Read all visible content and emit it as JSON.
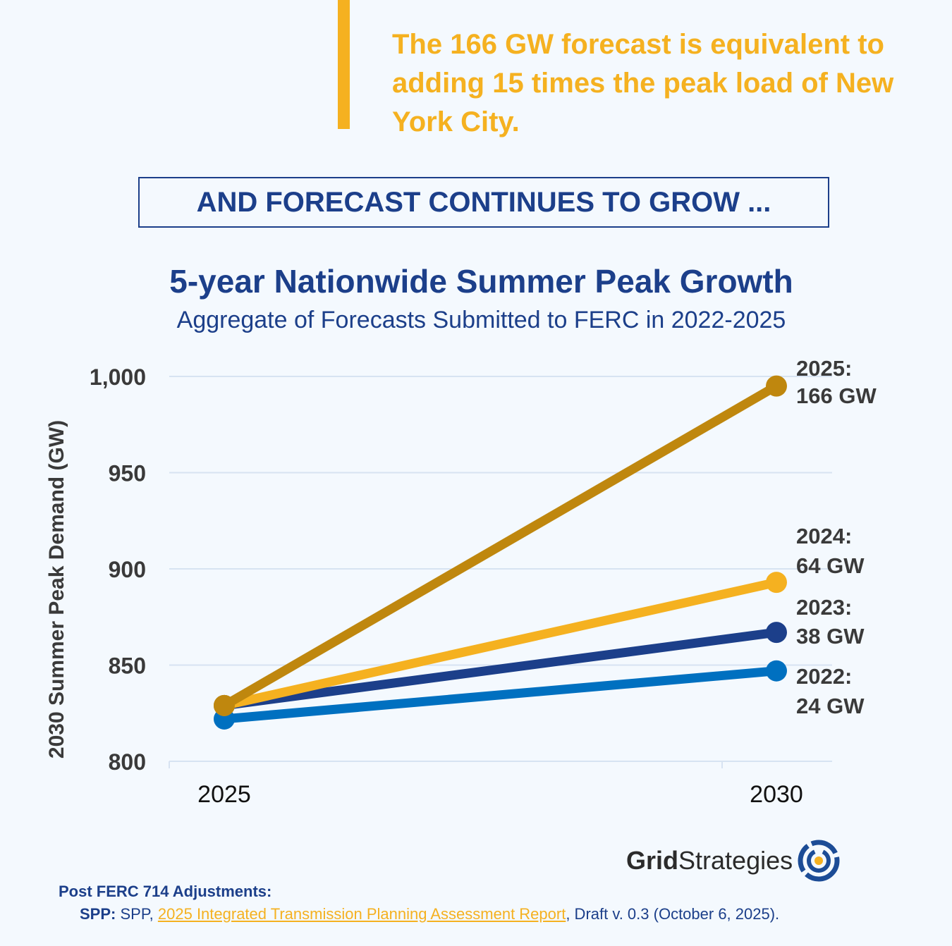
{
  "callout": {
    "text": "The 166 GW forecast is equivalent to adding 15 times the peak load of New York City."
  },
  "banner": {
    "text": "AND FORECAST CONTINUES TO GROW ..."
  },
  "colors": {
    "y2022": "#0070c0",
    "y2023": "#1c3f8a",
    "y2024": "#f5b120",
    "y2025": "#bf870e",
    "grid": "#d7e3f2"
  },
  "chart_data": {
    "type": "line",
    "title": "5-year Nationwide Summer Peak Growth",
    "subtitle": "Aggregate of Forecasts Submitted to FERC in 2022-2025",
    "xlabel": "",
    "ylabel": "2030 Summer Peak Demand (GW)",
    "x": [
      "2025",
      "2030"
    ],
    "ylim": [
      800,
      1000
    ],
    "yticks": [
      "800",
      "850",
      "900",
      "950",
      "1,000"
    ],
    "ytick_values": [
      800,
      850,
      900,
      950,
      1000
    ],
    "grid": true,
    "series": [
      {
        "name": "2022",
        "values": [
          822,
          847
        ],
        "label_year": "2022:",
        "label_growth": "24 GW",
        "color_key": "y2022"
      },
      {
        "name": "2023",
        "values": [
          829,
          867
        ],
        "label_year": "2023:",
        "label_growth": "38 GW",
        "color_key": "y2023"
      },
      {
        "name": "2024",
        "values": [
          829,
          893
        ],
        "label_year": "2024:",
        "label_growth": "64 GW",
        "color_key": "y2024"
      },
      {
        "name": "2025",
        "values": [
          829,
          995
        ],
        "label_year": "2025:",
        "label_growth": "166 GW",
        "color_key": "y2025"
      }
    ]
  },
  "logo": {
    "bold": "Grid",
    "light": "Strategies"
  },
  "footer": {
    "heading": "Post FERC 714 Adjustments:",
    "source_label": "SPP:",
    "source_pre": " SPP, ",
    "source_link": "2025 Integrated Transmission Planning Assessment Report",
    "source_post": ", Draft v. 0.3 (October 6, 2025)."
  }
}
